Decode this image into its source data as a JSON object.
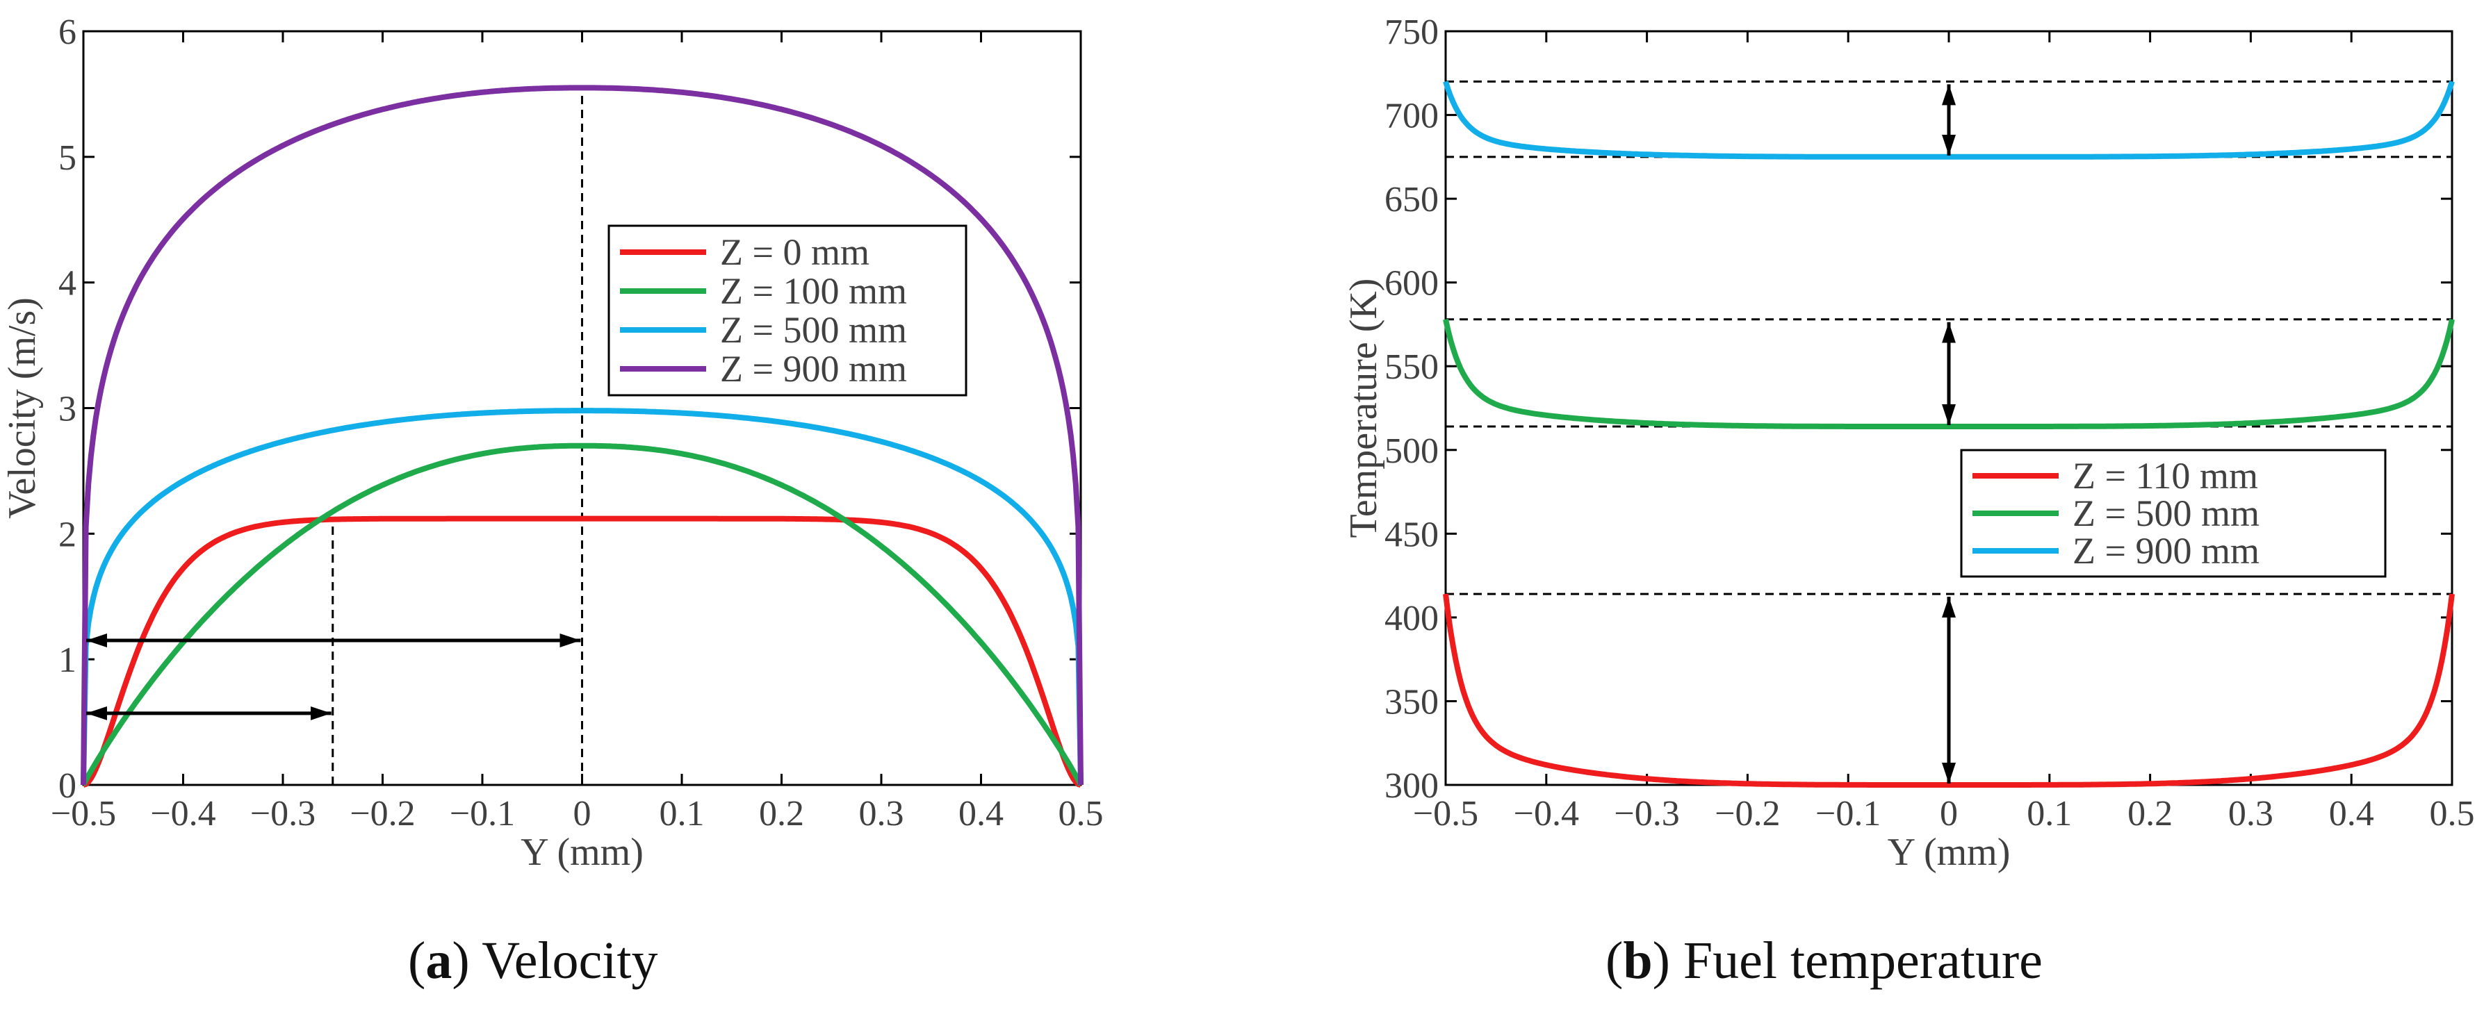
{
  "captions": {
    "a": {
      "letter": "a",
      "text": " Velocity"
    },
    "b": {
      "letter": "b",
      "text": " Fuel temperature"
    }
  },
  "chart_data": [
    {
      "id": "a",
      "type": "line",
      "xlabel": "Y (mm)",
      "ylabel": "Velocity (m/s)",
      "xlim": [
        -0.5,
        0.5
      ],
      "ylim": [
        0,
        6
      ],
      "xticks": [
        -0.5,
        -0.4,
        -0.3,
        -0.2,
        -0.1,
        0,
        0.1,
        0.2,
        0.3,
        0.4,
        0.5
      ],
      "xtick_labels": [
        "−0.5",
        "−0.4",
        "−0.3",
        "−0.2",
        "−0.1",
        "0",
        "0.1",
        "0.2",
        "0.3",
        "0.4",
        "0.5"
      ],
      "yticks": [
        0,
        1,
        2,
        3,
        4,
        5,
        6
      ],
      "ytick_labels": [
        "0",
        "1",
        "2",
        "3",
        "4",
        "5",
        "6"
      ],
      "legend_position": "center-right",
      "series": [
        {
          "name": "Z = 0 mm",
          "color": "#ee1c1c",
          "peak": 2.12,
          "shape": "flat"
        },
        {
          "name": "Z = 100 mm",
          "color": "#1faa4b",
          "peak": 2.7,
          "shape": "parabolic"
        },
        {
          "name": "Z = 500 mm",
          "color": "#12aeea",
          "peak": 2.98,
          "shape": "blunt"
        },
        {
          "name": "Z = 900 mm",
          "color": "#7c2fa0",
          "peak": 5.55,
          "shape": "blunt"
        }
      ],
      "annotations": {
        "vlines": [
          {
            "x": 0,
            "y_top": 5.55
          },
          {
            "x": -0.25,
            "y_top": 2.12
          }
        ],
        "arrows": [
          {
            "from": -0.5,
            "to": 0,
            "y": 1.15
          },
          {
            "from": -0.5,
            "to": -0.25,
            "y": 0.57
          }
        ]
      }
    },
    {
      "id": "b",
      "type": "line",
      "xlabel": "Y (mm)",
      "ylabel": "Temperature (K)",
      "xlim": [
        -0.5,
        0.5
      ],
      "ylim": [
        300,
        750
      ],
      "xticks": [
        -0.5,
        -0.4,
        -0.3,
        -0.2,
        -0.1,
        0,
        0.1,
        0.2,
        0.3,
        0.4,
        0.5
      ],
      "xtick_labels": [
        "−0.5",
        "−0.4",
        "−0.3",
        "−0.2",
        "−0.1",
        "0",
        "0.1",
        "0.2",
        "0.3",
        "0.4",
        "0.5"
      ],
      "yticks": [
        300,
        350,
        400,
        450,
        500,
        550,
        600,
        650,
        700,
        750
      ],
      "ytick_labels": [
        "300",
        "350",
        "400",
        "450",
        "500",
        "550",
        "600",
        "650",
        "700",
        "750"
      ],
      "legend_position": "center-right",
      "series": [
        {
          "name": "Z = 110 mm",
          "color": "#ee1c1c",
          "center": 300,
          "wall": 414
        },
        {
          "name": "Z = 500 mm",
          "color": "#1faa4b",
          "center": 514,
          "wall": 578
        },
        {
          "name": "Z = 900 mm",
          "color": "#12aeea",
          "center": 675,
          "wall": 720
        }
      ],
      "annotations": {
        "hlines": [
          720,
          675,
          578,
          514,
          414
        ],
        "arrows": [
          {
            "x": 0,
            "from": 720,
            "to": 675
          },
          {
            "x": 0,
            "from": 578,
            "to": 514
          },
          {
            "x": 0,
            "from": 414,
            "to": 300
          }
        ]
      }
    }
  ]
}
